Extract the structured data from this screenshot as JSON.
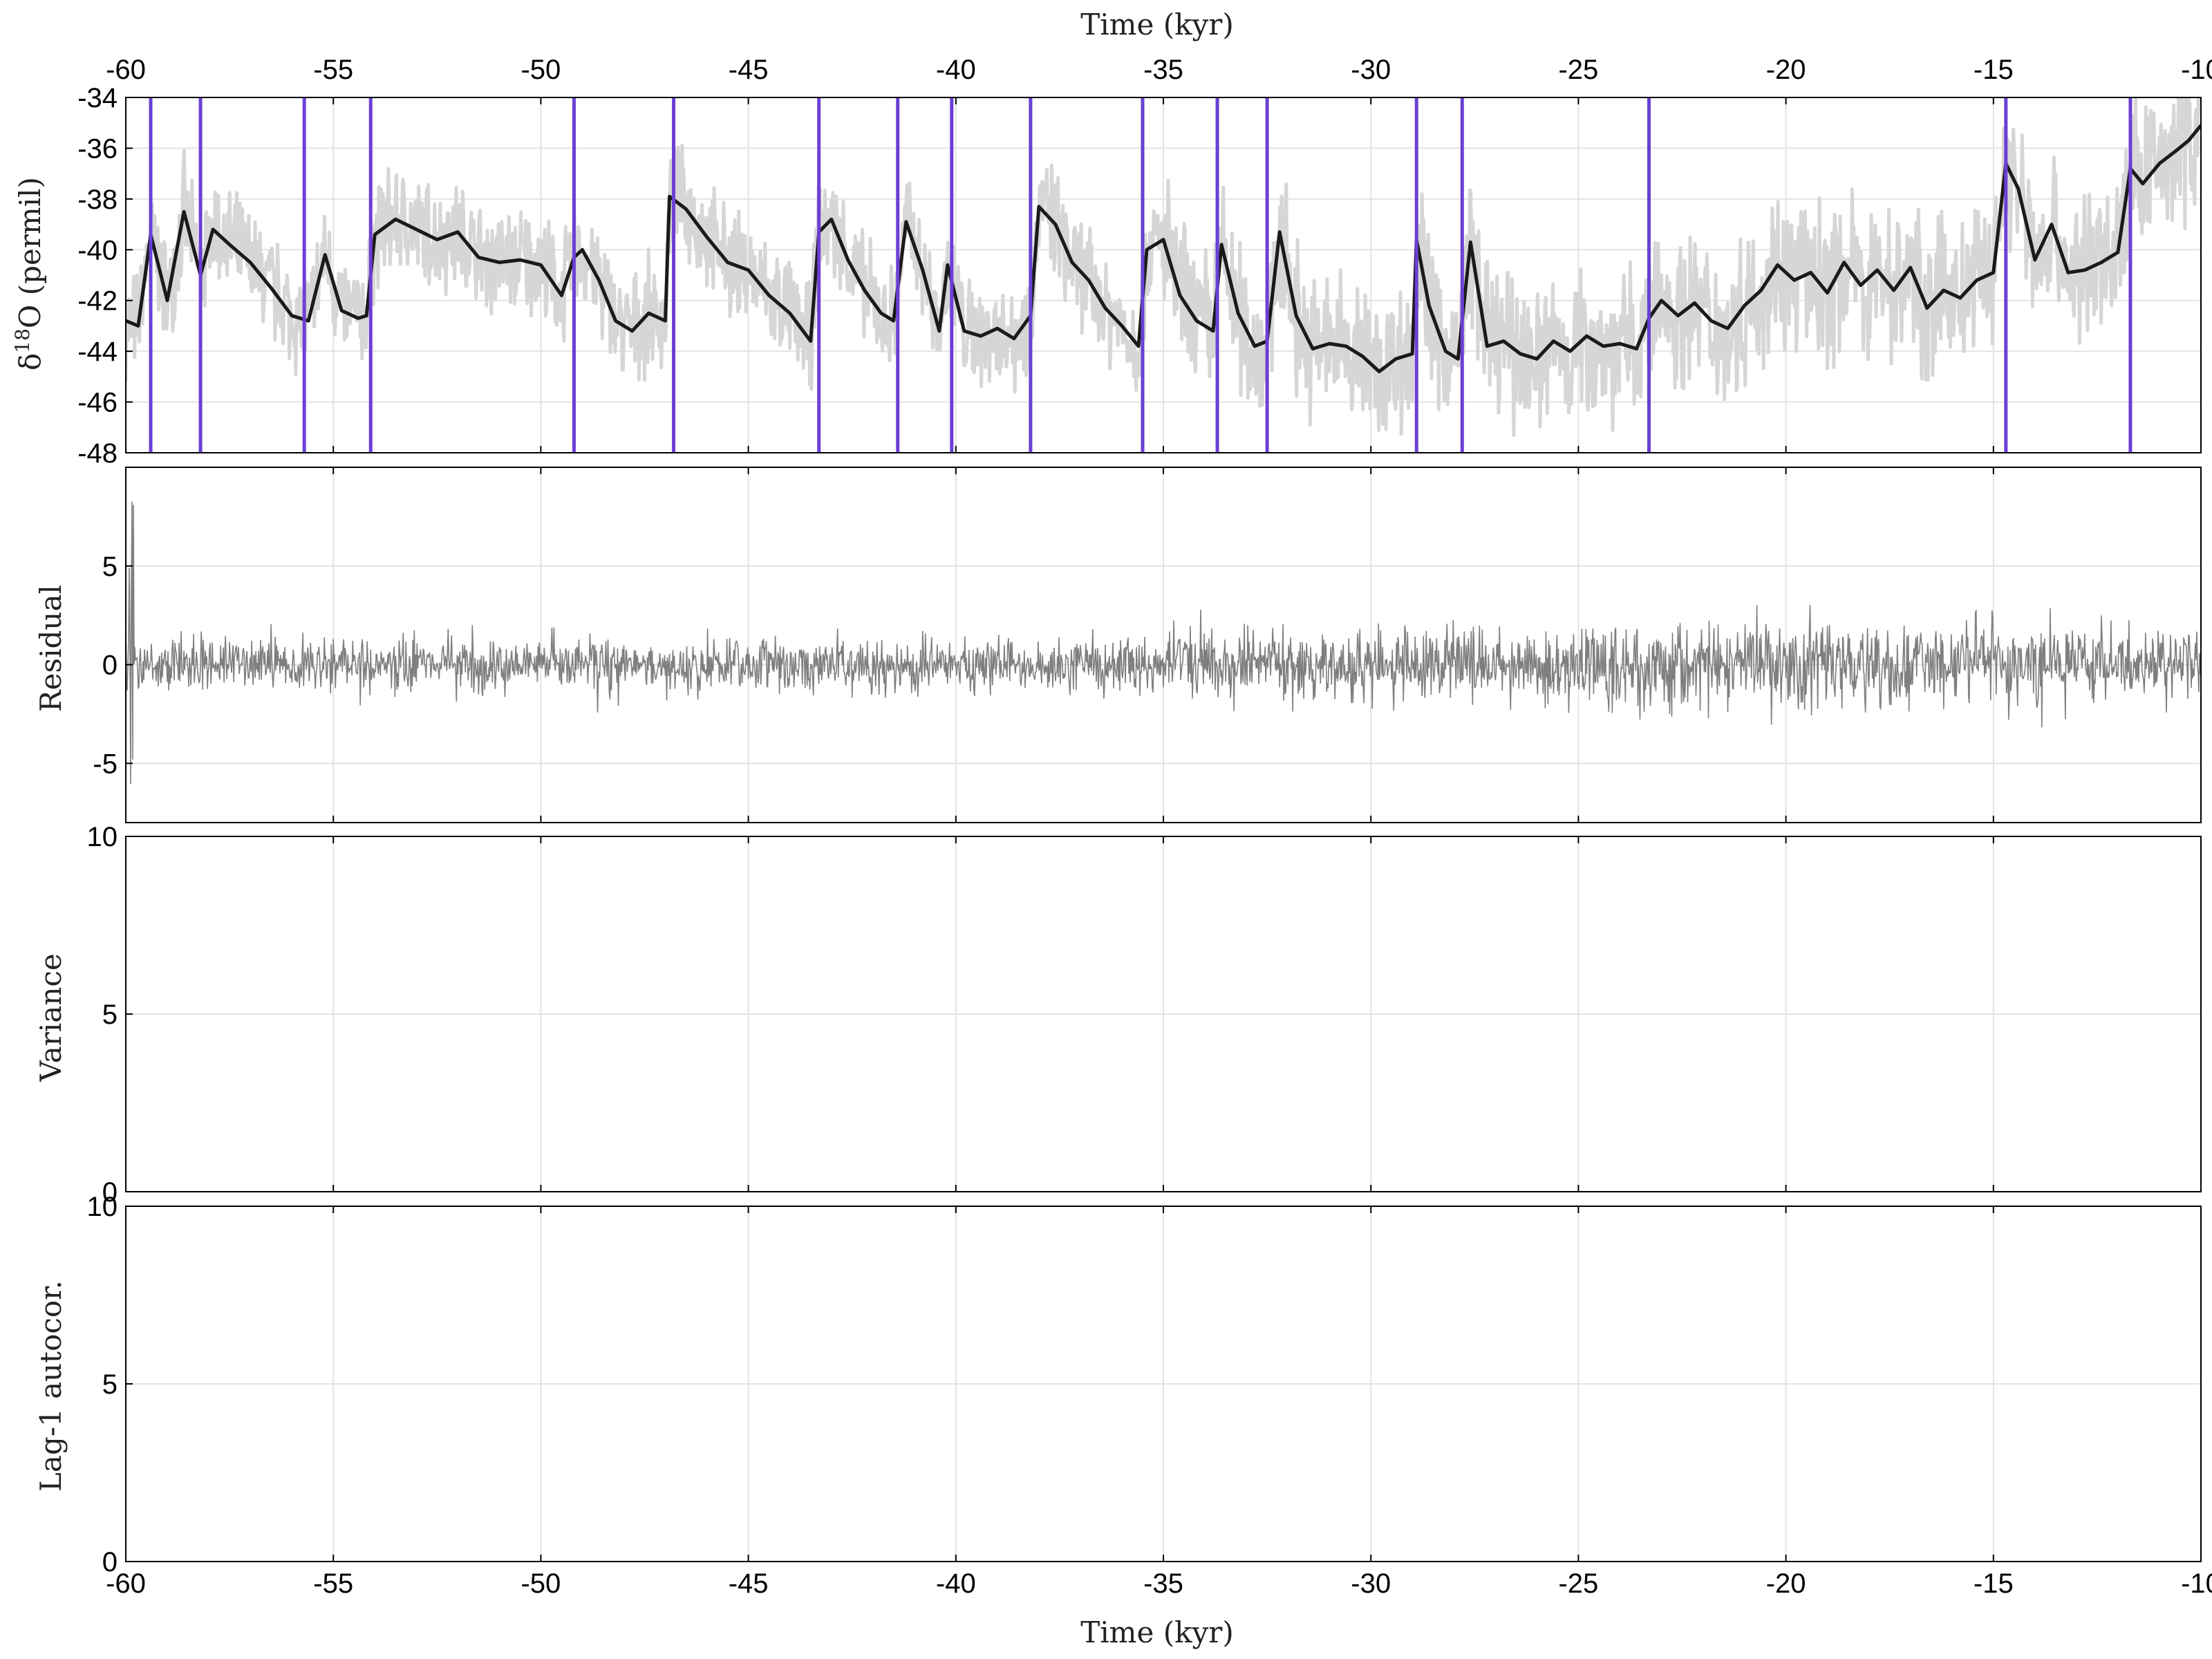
{
  "chart_data": [
    {
      "type": "line",
      "ylabel": "δ18O (permil)",
      "xlabel_top": "Time (kyr)",
      "xlim": [
        -60,
        -10
      ],
      "ylim": [
        -48,
        -34
      ],
      "xticks": [
        "-60",
        "-55",
        "-50",
        "-45",
        "-40",
        "-35",
        "-30",
        "-25",
        "-20",
        "-15",
        "-10"
      ],
      "yticks": [
        "-34",
        "-36",
        "-38",
        "-40",
        "-42",
        "-44",
        "-46",
        "-48"
      ],
      "grid": true,
      "colors": {
        "raw": "#d6d6d6",
        "smooth": "#1a1a1a",
        "event": "#6b3fd6"
      },
      "series": [
        {
          "x": [
            -60.0,
            -59.7,
            -59.4,
            -59.0,
            -58.6,
            -58.2,
            -57.9,
            -57.5,
            -57.0,
            -56.5,
            -56.0,
            -55.6,
            -55.2,
            -54.8,
            -54.4,
            -54.2,
            -54.0,
            -53.5,
            -53.0,
            -52.5,
            -52.0,
            -51.5,
            -51.0,
            -50.5,
            -50.0,
            -49.5,
            -49.2,
            -49.0,
            -48.6,
            -48.2,
            -47.8,
            -47.4,
            -47.0,
            -46.9,
            -46.5,
            -46.0,
            -45.5,
            -45.0,
            -44.5,
            -44.0,
            -43.5,
            -43.3,
            -43.0,
            -42.6,
            -42.2,
            -41.8,
            -41.5,
            -41.2,
            -40.8,
            -40.4,
            -40.2,
            -39.8,
            -39.4,
            -39.0,
            -38.6,
            -38.2,
            -38.0,
            -37.6,
            -37.2,
            -36.8,
            -36.4,
            -36.0,
            -35.6,
            -35.4,
            -35.0,
            -34.6,
            -34.2,
            -33.8,
            -33.6,
            -33.2,
            -32.8,
            -32.5,
            -32.2,
            -31.8,
            -31.4,
            -31.0,
            -30.6,
            -30.2,
            -29.8,
            -29.4,
            -29.0,
            -28.9,
            -28.6,
            -28.2,
            -27.9,
            -27.6,
            -27.2,
            -26.8,
            -26.4,
            -26.0,
            -25.6,
            -25.2,
            -24.8,
            -24.4,
            -24.0,
            -23.6,
            -23.3,
            -23.0,
            -22.6,
            -22.2,
            -21.8,
            -21.4,
            -21.0,
            -20.6,
            -20.2,
            -19.8,
            -19.4,
            -19.0,
            -18.6,
            -18.2,
            -17.8,
            -17.4,
            -17.0,
            -16.6,
            -16.2,
            -15.8,
            -15.4,
            -15.0,
            -14.7,
            -14.4,
            -14.0,
            -13.6,
            -13.2,
            -12.8,
            -12.4,
            -12.0,
            -11.7,
            -11.4,
            -11.0,
            -10.6,
            -10.3,
            -10.0
          ],
          "y": [
            -42.8,
            -43.0,
            -39.4,
            -42.0,
            -38.5,
            -41.0,
            -39.2,
            -39.8,
            -40.5,
            -41.5,
            -42.6,
            -42.8,
            -40.2,
            -42.4,
            -42.7,
            -42.6,
            -39.4,
            -38.8,
            -39.2,
            -39.6,
            -39.3,
            -40.3,
            -40.5,
            -40.4,
            -40.6,
            -41.8,
            -40.3,
            -40.0,
            -41.2,
            -42.8,
            -43.2,
            -42.5,
            -42.8,
            -37.9,
            -38.4,
            -39.5,
            -40.5,
            -40.8,
            -41.8,
            -42.5,
            -43.6,
            -39.3,
            -38.8,
            -40.4,
            -41.6,
            -42.5,
            -42.8,
            -38.9,
            -40.8,
            -43.2,
            -40.6,
            -43.2,
            -43.4,
            -43.1,
            -43.5,
            -42.6,
            -38.3,
            -39.0,
            -40.5,
            -41.2,
            -42.3,
            -43.0,
            -43.8,
            -40.0,
            -39.6,
            -41.8,
            -42.8,
            -43.2,
            -39.8,
            -42.5,
            -43.8,
            -43.6,
            -39.3,
            -42.6,
            -43.9,
            -43.7,
            -43.8,
            -44.2,
            -44.8,
            -44.3,
            -44.1,
            -39.6,
            -42.2,
            -44.0,
            -44.3,
            -39.7,
            -43.8,
            -43.6,
            -44.1,
            -44.3,
            -43.6,
            -44.0,
            -43.4,
            -43.8,
            -43.7,
            -43.9,
            -42.7,
            -42.0,
            -42.6,
            -42.1,
            -42.8,
            -43.1,
            -42.2,
            -41.6,
            -40.6,
            -41.2,
            -40.9,
            -41.7,
            -40.5,
            -41.4,
            -40.8,
            -41.6,
            -40.7,
            -42.3,
            -41.6,
            -41.9,
            -41.2,
            -40.9,
            -36.6,
            -37.6,
            -40.4,
            -39.0,
            -40.9,
            -40.8,
            -40.5,
            -40.1,
            -36.8,
            -37.4,
            -36.6,
            -36.1,
            -35.7,
            -35.1
          ]
        }
      ],
      "event_lines_x": [
        -59.4,
        -58.2,
        -55.7,
        -54.1,
        -49.2,
        -46.8,
        -43.3,
        -41.4,
        -40.1,
        -38.2,
        -35.5,
        -33.7,
        -32.5,
        -28.9,
        -27.8,
        -23.3,
        -14.7,
        -11.7
      ]
    },
    {
      "type": "line",
      "ylabel": "Residual",
      "xlim": [
        -60,
        -10
      ],
      "ylim": [
        -8,
        10
      ],
      "yticks": [
        "5",
        "0",
        "-5"
      ],
      "grid": true,
      "color": "#7f7f7f",
      "description_of_values": "high-frequency residual noise around 0; amplitude about ±2.5 before -35 kyr, about ±4 after, peaks near 9 at -60 kyr"
    },
    {
      "type": "line",
      "ylabel": "Variance",
      "xlim": [
        -60,
        -10
      ],
      "ylim": [
        0,
        10
      ],
      "yticks": [
        "10",
        "5",
        "0"
      ],
      "grid": true,
      "series": []
    },
    {
      "type": "line",
      "ylabel": "Lag-1 autocor.",
      "xlabel": "Time (kyr)",
      "xlim": [
        -60,
        -10
      ],
      "ylim": [
        0,
        10
      ],
      "xticks": [
        "-60",
        "-55",
        "-50",
        "-45",
        "-40",
        "-35",
        "-30",
        "-25",
        "-20",
        "-15",
        "-10"
      ],
      "yticks": [
        "10",
        "5",
        "0"
      ],
      "grid": true,
      "series": []
    }
  ]
}
